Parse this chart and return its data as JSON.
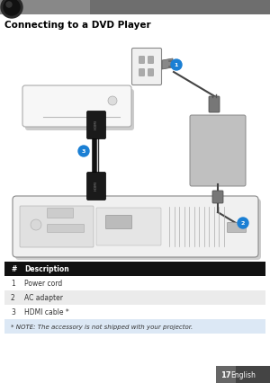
{
  "title": "Connecting to a DVD Player",
  "title_fontsize": 7.5,
  "title_fontweight": "bold",
  "bg_color": "#ffffff",
  "header_bar_color": "#888888",
  "table_header_bg": "#111111",
  "table_header_fg": "#ffffff",
  "table_row1_bg": "#ffffff",
  "table_row2_bg": "#ebebeb",
  "table_row3_bg": "#ffffff",
  "table_note_bg": "#dce8f5",
  "table_header_text": [
    "#",
    "Description"
  ],
  "table_rows": [
    [
      "1",
      "Power cord"
    ],
    [
      "2",
      "AC adapter"
    ],
    [
      "3",
      "HDMI cable *"
    ]
  ],
  "note_text": "* NOTE: The accessory is not shipped with your projector.",
  "page_num": "17",
  "page_lang": "English",
  "footer_bg": "#444444",
  "footer_fg": "#ffffff",
  "circle_color": "#1a7fd4",
  "circle_text_color": "#ffffff",
  "diagram_bg": "#ffffff",
  "dvd_fill": "#f7f7f7",
  "dvd_edge": "#aaaaaa",
  "outlet_fill": "#f0f0f0",
  "outlet_edge": "#888888",
  "ac_fill": "#c0c0c0",
  "ac_edge": "#888888",
  "proj_fill": "#f0f0f0",
  "proj_edge": "#888888",
  "cable_color": "#1a1a1a",
  "power_cable_color": "#444444"
}
